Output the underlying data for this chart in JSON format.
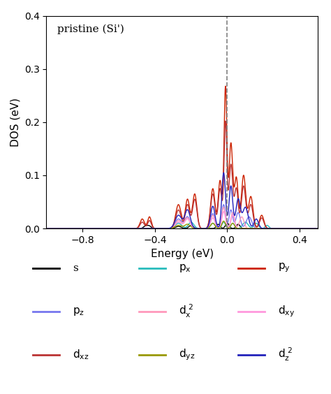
{
  "title": "pristine (Si')",
  "xlabel": "Energy (eV)",
  "ylabel": "DOS (eV)",
  "xlim": [
    -1.0,
    0.5
  ],
  "ylim": [
    0.0,
    0.4
  ],
  "xticks": [
    -0.8,
    -0.4,
    0.0,
    0.4
  ],
  "yticks": [
    0.0,
    0.1,
    0.2,
    0.3,
    0.4
  ],
  "vline_x": 0.0,
  "colors": {
    "s": "#000000",
    "px": "#29BCBC",
    "py": "#CC2200",
    "pz": "#7777EE",
    "dx2": "#FF99BB",
    "dxy": "#FF99DD",
    "dxz": "#BB3333",
    "dyz": "#999900",
    "dz2": "#2222BB"
  }
}
